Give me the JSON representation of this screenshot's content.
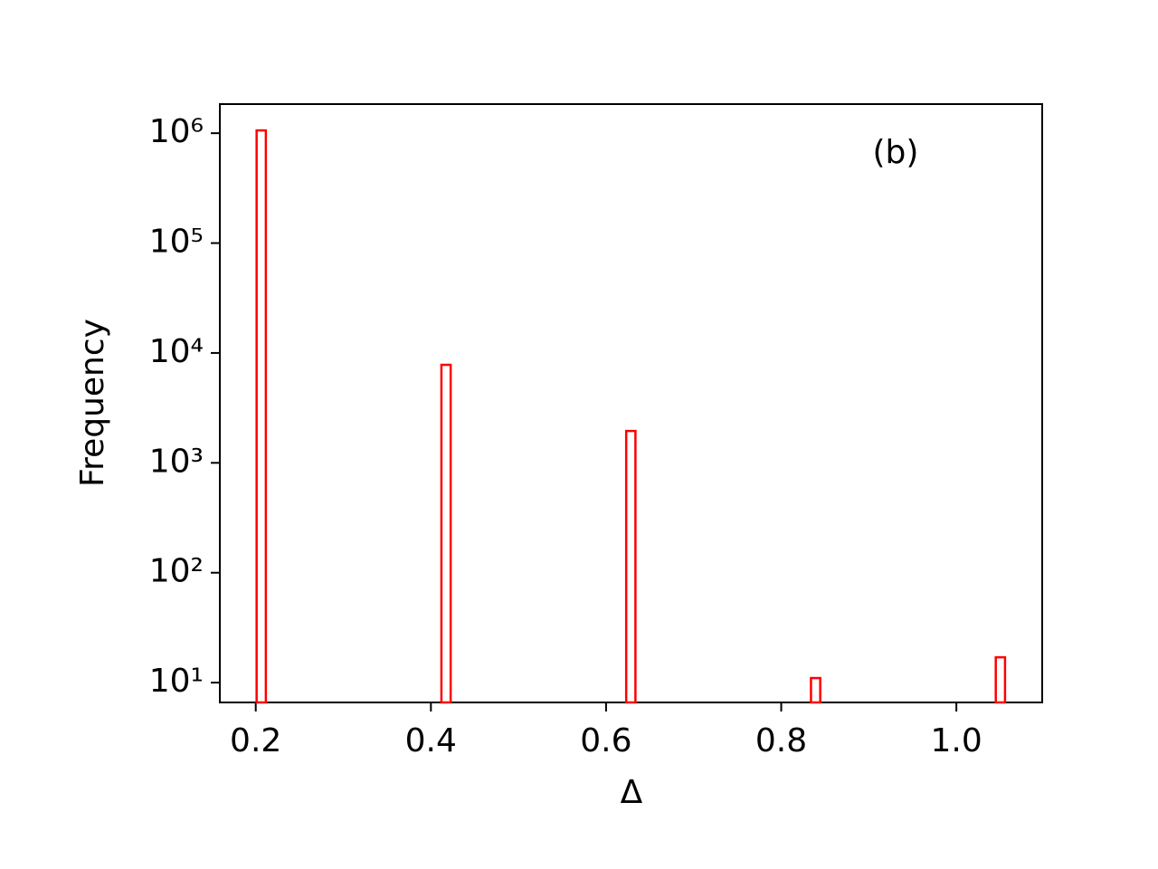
{
  "chart_data": {
    "type": "histogram",
    "xlabel": "Δ",
    "ylabel": "Frequency",
    "annotation": "(b)",
    "bins": [
      0.201,
      0.21155,
      0.2221,
      0.23265,
      0.2432,
      0.25375,
      0.2643,
      0.27485,
      0.2854,
      0.29595,
      0.3065,
      0.31705,
      0.3276,
      0.33815,
      0.3487,
      0.35925,
      0.3698,
      0.38035,
      0.3909,
      0.40145,
      0.412,
      0.42255,
      0.4331,
      0.44365,
      0.4542,
      0.46475,
      0.4753,
      0.48585,
      0.4964,
      0.50695,
      0.5175,
      0.52805,
      0.5386,
      0.54915,
      0.5597,
      0.57025,
      0.5808,
      0.59135,
      0.6019,
      0.61245,
      0.623,
      0.63355,
      0.6441,
      0.65465,
      0.6652,
      0.67575,
      0.6863,
      0.69685,
      0.7074,
      0.71795,
      0.7285,
      0.73905,
      0.7496,
      0.76015,
      0.7707,
      0.78125,
      0.7918,
      0.80235,
      0.8129,
      0.82345,
      0.834,
      0.84455,
      0.8551,
      0.86565,
      0.8762,
      0.88675,
      0.8973,
      0.90785,
      0.9184,
      0.92895,
      0.9395,
      0.95005,
      0.9606,
      0.97115,
      0.9817,
      0.99225,
      1.0028,
      1.01335,
      1.0239,
      1.03445,
      1.045,
      1.05555
    ],
    "values": [
      1060000,
      0,
      0,
      0,
      0,
      0,
      0,
      0,
      0,
      0,
      0,
      0,
      0,
      0,
      0,
      0,
      0,
      0,
      0,
      0,
      7800,
      0,
      0,
      0,
      0,
      0,
      0,
      0,
      0,
      0,
      0,
      0,
      0,
      0,
      0,
      0,
      0,
      0,
      0,
      0,
      1950,
      0,
      0,
      0,
      0,
      0,
      0,
      0,
      0,
      0,
      0,
      0,
      0,
      0,
      0,
      0,
      0,
      0,
      0,
      0,
      11,
      0,
      0,
      0,
      0,
      0,
      0,
      0,
      0,
      0,
      0,
      0,
      0,
      0,
      0,
      0,
      0,
      0,
      0,
      0,
      17
    ],
    "color": "#ff0000",
    "xlim": [
      0.159,
      1.098
    ],
    "xticks": [
      0.2,
      0.4,
      0.6,
      0.8,
      {
        "value": 1,
        "label": "1.0"
      }
    ],
    "ylim": [
      6.6,
      1840000
    ],
    "yscale": "log",
    "yticks": [
      {
        "value": 10,
        "label": "10¹"
      },
      {
        "value": 100,
        "label": "10²"
      },
      {
        "value": 1000,
        "label": "10³"
      },
      {
        "value": 10000,
        "label": "10⁴"
      },
      {
        "value": 100000,
        "label": "10⁵"
      },
      {
        "value": 1000000,
        "label": "10⁶"
      }
    ]
  }
}
